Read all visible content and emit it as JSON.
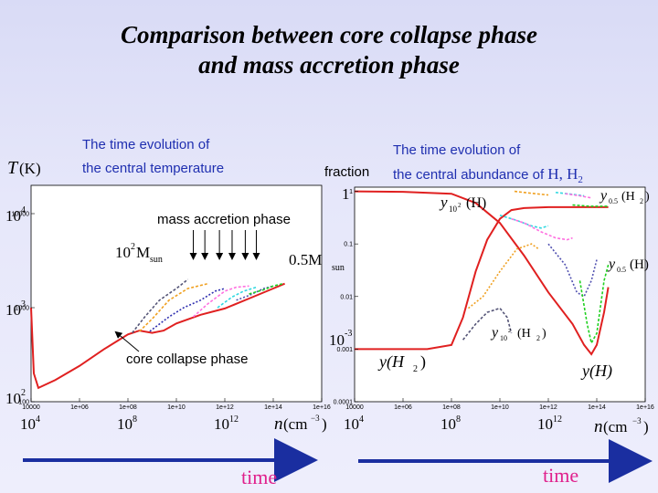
{
  "slide": {
    "title_line1": "Comparison between  core collapse phase",
    "title_line2": "and mass accretion phase",
    "left_caption_1": "The time evolution of",
    "left_caption_2": "the central temperature",
    "right_caption_1": "The time evolution of",
    "right_caption_2": "the central abundance of",
    "right_caption_species": "H, H",
    "time_label": "time"
  },
  "chart_data": [
    {
      "type": "line",
      "ylabel": "T(K)",
      "xlabel": "n(cm^-3)",
      "x_scale": "log",
      "y_scale": "log",
      "xlim": [
        10000,
        1e+16
      ],
      "ylim": [
        100,
        20000
      ],
      "x_ticks": [
        "10000",
        "1e+06",
        "1e+08",
        "1e+10",
        "1e+12",
        "1e+14",
        "1e+16"
      ],
      "y_ticks": [
        "100",
        "1000",
        "10000"
      ],
      "big_x_ticks": [
        "10",
        "10",
        "10"
      ],
      "big_x_exps": [
        "4",
        "8",
        "12"
      ],
      "big_y_ticks": [
        "10",
        "10",
        "10"
      ],
      "big_y_exps": [
        "2",
        "3",
        "4"
      ],
      "annotations": {
        "accretion": "mass accretion phase",
        "collapse": "core collapse phase",
        "mass_high": "10",
        "mass_high_exp": "2",
        "mass_high_unit": "M",
        "mass_high_sub": "sun",
        "mass_low": "0.5M",
        "mass_low_sub": "sun"
      },
      "series": [
        {
          "color": "#e02020",
          "points": [
            [
              10000.0,
              1000
            ],
            [
              13000.0,
              200
            ],
            [
              20000.0,
              140
            ],
            [
              100000.0,
              170
            ],
            [
              1000000.0,
              240
            ],
            [
              10000000.0,
              360
            ],
            [
              100000000.0,
              520
            ],
            [
              300000000.0,
              570
            ],
            [
              1000000000.0,
              540
            ],
            [
              3000000000.0,
              570
            ],
            [
              10000000000.0,
              680
            ],
            [
              100000000000.0,
              840
            ],
            [
              1000000000000.0,
              980
            ],
            [
              10000000000000.0,
              1250
            ],
            [
              100000000000000.0,
              1600
            ],
            [
              300000000000000.0,
              1800
            ]
          ]
        },
        {
          "color": "#555577",
          "points": [
            [
              150000000.0,
              540
            ],
            [
              500000000.0,
              800
            ],
            [
              2000000000.0,
              1200
            ],
            [
              10000000000.0,
              1600
            ],
            [
              30000000000.0,
              2000
            ]
          ]
        },
        {
          "color": "#f0a020",
          "points": [
            [
              300000000.0,
              560
            ],
            [
              1000000000.0,
              760
            ],
            [
              5000000000.0,
              1200
            ],
            [
              30000000000.0,
              1600
            ],
            [
              200000000000.0,
              1800
            ]
          ]
        },
        {
          "color": "#3030b0",
          "points": [
            [
              800000000.0,
              560
            ],
            [
              5000000000.0,
              800
            ],
            [
              20000000000.0,
              1000
            ],
            [
              100000000000.0,
              1200
            ],
            [
              400000000000.0,
              1500
            ],
            [
              1000000000000.0,
              1600
            ]
          ]
        },
        {
          "color": "#ff70e0",
          "points": [
            [
              50000000000.0,
              800
            ],
            [
              200000000000.0,
              1100
            ],
            [
              1000000000000.0,
              1500
            ],
            [
              3000000000000.0,
              1650
            ],
            [
              10000000000000.0,
              1700
            ]
          ]
        },
        {
          "color": "#30d8e0",
          "points": [
            [
              500000000000.0,
              1000
            ],
            [
              2000000000000.0,
              1300
            ],
            [
              6000000000000.0,
              1500
            ],
            [
              20000000000000.0,
              1650
            ]
          ]
        },
        {
          "color": "#5050b0",
          "points": [
            [
              3000000000000.0,
              1200
            ],
            [
              10000000000000.0,
              1350
            ],
            [
              40000000000000.0,
              1600
            ],
            [
              100000000000000.0,
              1700
            ]
          ]
        },
        {
          "color": "#20d020",
          "points": [
            [
              10000000000000.0,
              1400
            ],
            [
              40000000000000.0,
              1550
            ],
            [
              100000000000000.0,
              1700
            ],
            [
              250000000000000.0,
              1800
            ]
          ]
        }
      ],
      "accretion_arrow_x": [
        50000000000.0,
        150000000000.0,
        600000000000.0,
        2000000000000.0,
        7000000000000.0,
        20000000000000.0
      ]
    },
    {
      "type": "line",
      "ylabel": "fraction",
      "xlabel": "n(cm^-3)",
      "x_scale": "log",
      "y_scale": "log",
      "xlim": [
        10000,
        1e+16
      ],
      "ylim": [
        0.0001,
        1.2
      ],
      "x_ticks": [
        "10000",
        "1e+06",
        "1e+08",
        "1e+10",
        "1e+12",
        "1e+14",
        "1e+16"
      ],
      "y_ticks": [
        "0.0001",
        "0.001",
        "0.01",
        "0.1",
        "1"
      ],
      "big_x_ticks": [
        "10",
        "10",
        "10"
      ],
      "big_x_exps": [
        "4",
        "8",
        "12"
      ],
      "big_y_top": "1",
      "big_y_bottom": "10",
      "big_y_bottom_exp": "-3",
      "annotations": {
        "y_H_max": "y",
        "y_H_max_sub": "10",
        "y_H_max_sup": "2",
        "y_H_max_arg": "(H)",
        "y_H2_min": "y",
        "y_H2_min_sub": "0.5",
        "y_H2_min_arg": "(H",
        "y_H2_min_arg_sub": "2",
        "y_H2_min_close": ")",
        "y_H_min": "y",
        "y_H_min_sub": "0.5",
        "y_H_min_arg": "(H)",
        "y_H2_max": "y",
        "y_H2_max_sub": "10",
        "y_H2_max_sup": "2",
        "y_H2_max_arg": "(H",
        "y_H2_max_arg_sub": "2",
        "y_H2_max_close": ")",
        "y_H2": "y(H",
        "y_H2_sub": "2",
        "y_H2_close": ")",
        "y_H": "y(H)"
      },
      "series": [
        {
          "color": "#e02020",
          "points": [
            [
              10000.0,
              1
            ],
            [
              1000000.0,
              0.98
            ],
            [
              100000000.0,
              0.9
            ],
            [
              1000000000.0,
              0.6
            ],
            [
              10000000000.0,
              0.25
            ],
            [
              100000000000.0,
              0.06
            ],
            [
              1000000000000.0,
              0.012
            ],
            [
              10000000000000.0,
              0.003
            ],
            [
              30000000000000.0,
              0.0012
            ],
            [
              60000000000000.0,
              0.0008
            ],
            [
              100000000000000.0,
              0.0012
            ],
            [
              200000000000000.0,
              0.005
            ],
            [
              300000000000000.0,
              0.015
            ]
          ]
        },
        {
          "color": "#e02020",
          "points": [
            [
              10000.0,
              0.001
            ],
            [
              10000000.0,
              0.001
            ],
            [
              100000000.0,
              0.0012
            ],
            [
              300000000.0,
              0.004
            ],
            [
              1000000000.0,
              0.03
            ],
            [
              3000000000.0,
              0.12
            ],
            [
              10000000000.0,
              0.3
            ],
            [
              30000000000.0,
              0.44
            ],
            [
              100000000000.0,
              0.48
            ],
            [
              1000000000000.0,
              0.5
            ],
            [
              10000000000000.0,
              0.5
            ],
            [
              300000000000000.0,
              0.5
            ]
          ]
        },
        {
          "color": "#555577",
          "points": [
            [
              300000000.0,
              0.0015
            ],
            [
              1000000000.0,
              0.003
            ],
            [
              3000000000.0,
              0.005
            ],
            [
              10000000000.0,
              0.006
            ],
            [
              20000000000.0,
              0.004
            ],
            [
              30000000000.0,
              0.002
            ]
          ]
        },
        {
          "color": "#f0a020",
          "points": [
            [
              500000000.0,
              0.006
            ],
            [
              2000000000.0,
              0.01
            ],
            [
              10000000000.0,
              0.03
            ],
            [
              50000000000.0,
              0.08
            ],
            [
              200000000000.0,
              0.1
            ],
            [
              400000000000.0,
              0.08
            ]
          ]
        },
        {
          "color": "#30d8e0",
          "points": [
            [
              10000000000.0,
              0.35
            ],
            [
              50000000000.0,
              0.28
            ],
            [
              200000000000.0,
              0.22
            ],
            [
              500000000000.0,
              0.2
            ],
            [
              1000000000000.0,
              0.22
            ]
          ]
        },
        {
          "color": "#ff70e0",
          "points": [
            [
              30000000000.0,
              0.3
            ],
            [
              100000000000.0,
              0.25
            ],
            [
              500000000000.0,
              0.17
            ],
            [
              2000000000000.0,
              0.13
            ],
            [
              6000000000000.0,
              0.12
            ],
            [
              10000000000000.0,
              0.13
            ]
          ]
        },
        {
          "color": "#5050b0",
          "points": [
            [
              1000000000000.0,
              0.1
            ],
            [
              5000000000000.0,
              0.04
            ],
            [
              15000000000000.0,
              0.012
            ],
            [
              30000000000000.0,
              0.01
            ],
            [
              60000000000000.0,
              0.02
            ],
            [
              100000000000000.0,
              0.05
            ]
          ]
        },
        {
          "color": "#20d020",
          "points": [
            [
              20000000000000.0,
              0.02
            ],
            [
              40000000000000.0,
              0.003
            ],
            [
              60000000000000.0,
              0.0013
            ],
            [
              100000000000000.0,
              0.002
            ],
            [
              200000000000000.0,
              0.02
            ],
            [
              300000000000000.0,
              0.04
            ]
          ]
        },
        {
          "color": "#f0a020",
          "points": [
            [
              40000000000.0,
              1
            ],
            [
              100000000000.0,
              0.95
            ],
            [
              300000000000.0,
              0.9
            ],
            [
              1000000000000.0,
              0.85
            ]
          ]
        },
        {
          "color": "#30d8e0",
          "points": [
            [
              2000000000000.0,
              0.95
            ],
            [
              10000000000000.0,
              0.88
            ],
            [
              30000000000000.0,
              0.82
            ]
          ]
        },
        {
          "color": "#ff70e0",
          "points": [
            [
              5000000000000.0,
              0.9
            ],
            [
              20000000000000.0,
              0.82
            ],
            [
              60000000000000.0,
              0.75
            ]
          ]
        },
        {
          "color": "#20d020",
          "points": [
            [
              10000000000000.0,
              0.55
            ],
            [
              50000000000000.0,
              0.52
            ],
            [
              300000000000000.0,
              0.52
            ]
          ]
        }
      ]
    }
  ]
}
